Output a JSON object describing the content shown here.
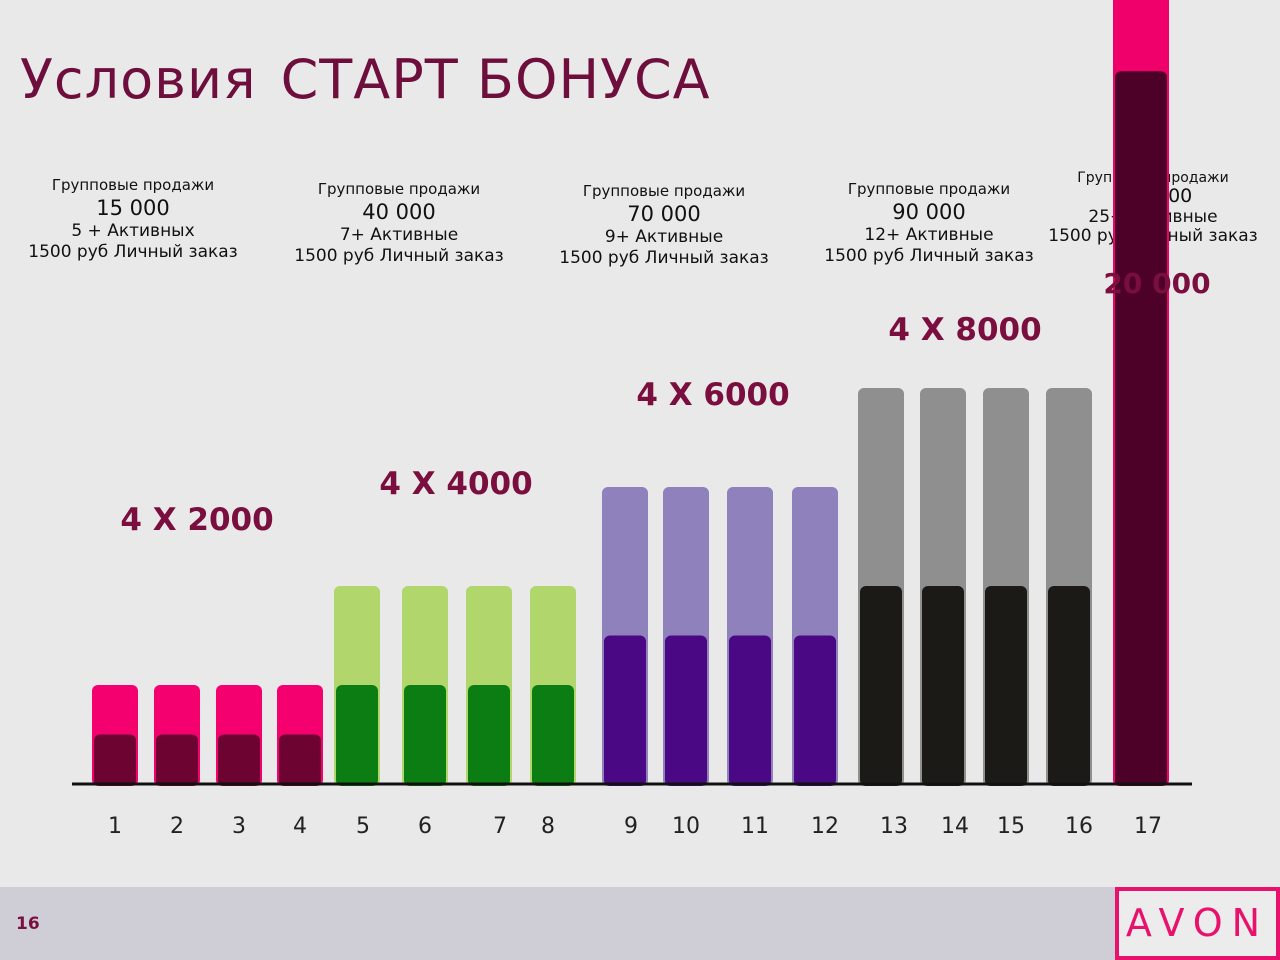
{
  "slide": {
    "title_part1": "Условия",
    "title_part2": "СТАРТ БОНУСА",
    "page_number": "16",
    "logo": "AVON"
  },
  "conditions": [
    {
      "label": "Групповые продажи",
      "amount": "15 000",
      "active": "5 + Активных",
      "order": "1500 руб  Личный заказ"
    },
    {
      "label": "Групповые продажи",
      "amount": "40 000",
      "active": "7+ Активные",
      "order": "1500 руб  Личный заказ"
    },
    {
      "label": "Групповые продажи",
      "amount": "70 000",
      "active": "9+ Активные",
      "order": "1500 руб  Личный заказ"
    },
    {
      "label": "Групповые продажи",
      "amount": "90 000",
      "active": "12+ Активные",
      "order": "1500 руб  Личный заказ"
    },
    {
      "label": "Групповые продажи",
      "amount": "120 000",
      "active": "25+ Активные",
      "order": "1500 руб  Личный заказ"
    }
  ],
  "chart_data": {
    "type": "bar",
    "categories": [
      "1",
      "2",
      "3",
      "4",
      "5",
      "6",
      "7",
      "8",
      "9",
      "10",
      "11",
      "12",
      "13",
      "14",
      "15",
      "16",
      "17"
    ],
    "groups": [
      {
        "label": "4 X 2000",
        "bars": [
          1,
          2,
          3,
          4
        ],
        "light": "#f5006f",
        "dark": "#6c0330",
        "values": [
          2000,
          2000,
          2000,
          2000
        ]
      },
      {
        "label": "4 X 4000",
        "bars": [
          5,
          6,
          7,
          8
        ],
        "light": "#b0d66c",
        "dark": "#0b7d12",
        "values": [
          4000,
          4000,
          4000,
          4000
        ]
      },
      {
        "label": "4 X 6000",
        "bars": [
          9,
          10,
          11,
          12
        ],
        "light": "#8e81bc",
        "dark": "#4a0884",
        "values": [
          6000,
          6000,
          6000,
          6000
        ]
      },
      {
        "label": "4 X 8000",
        "bars": [
          13,
          14,
          15,
          16
        ],
        "light": "#8f8f8f",
        "dark": "#1b1a17",
        "values": [
          8000,
          8000,
          8000,
          8000
        ]
      },
      {
        "label": "20 000",
        "bars": [
          17
        ],
        "light": "#f0006a",
        "dark": "#4d0128",
        "values": [
          20000
        ]
      }
    ],
    "label_color": "#7a0e3e"
  }
}
